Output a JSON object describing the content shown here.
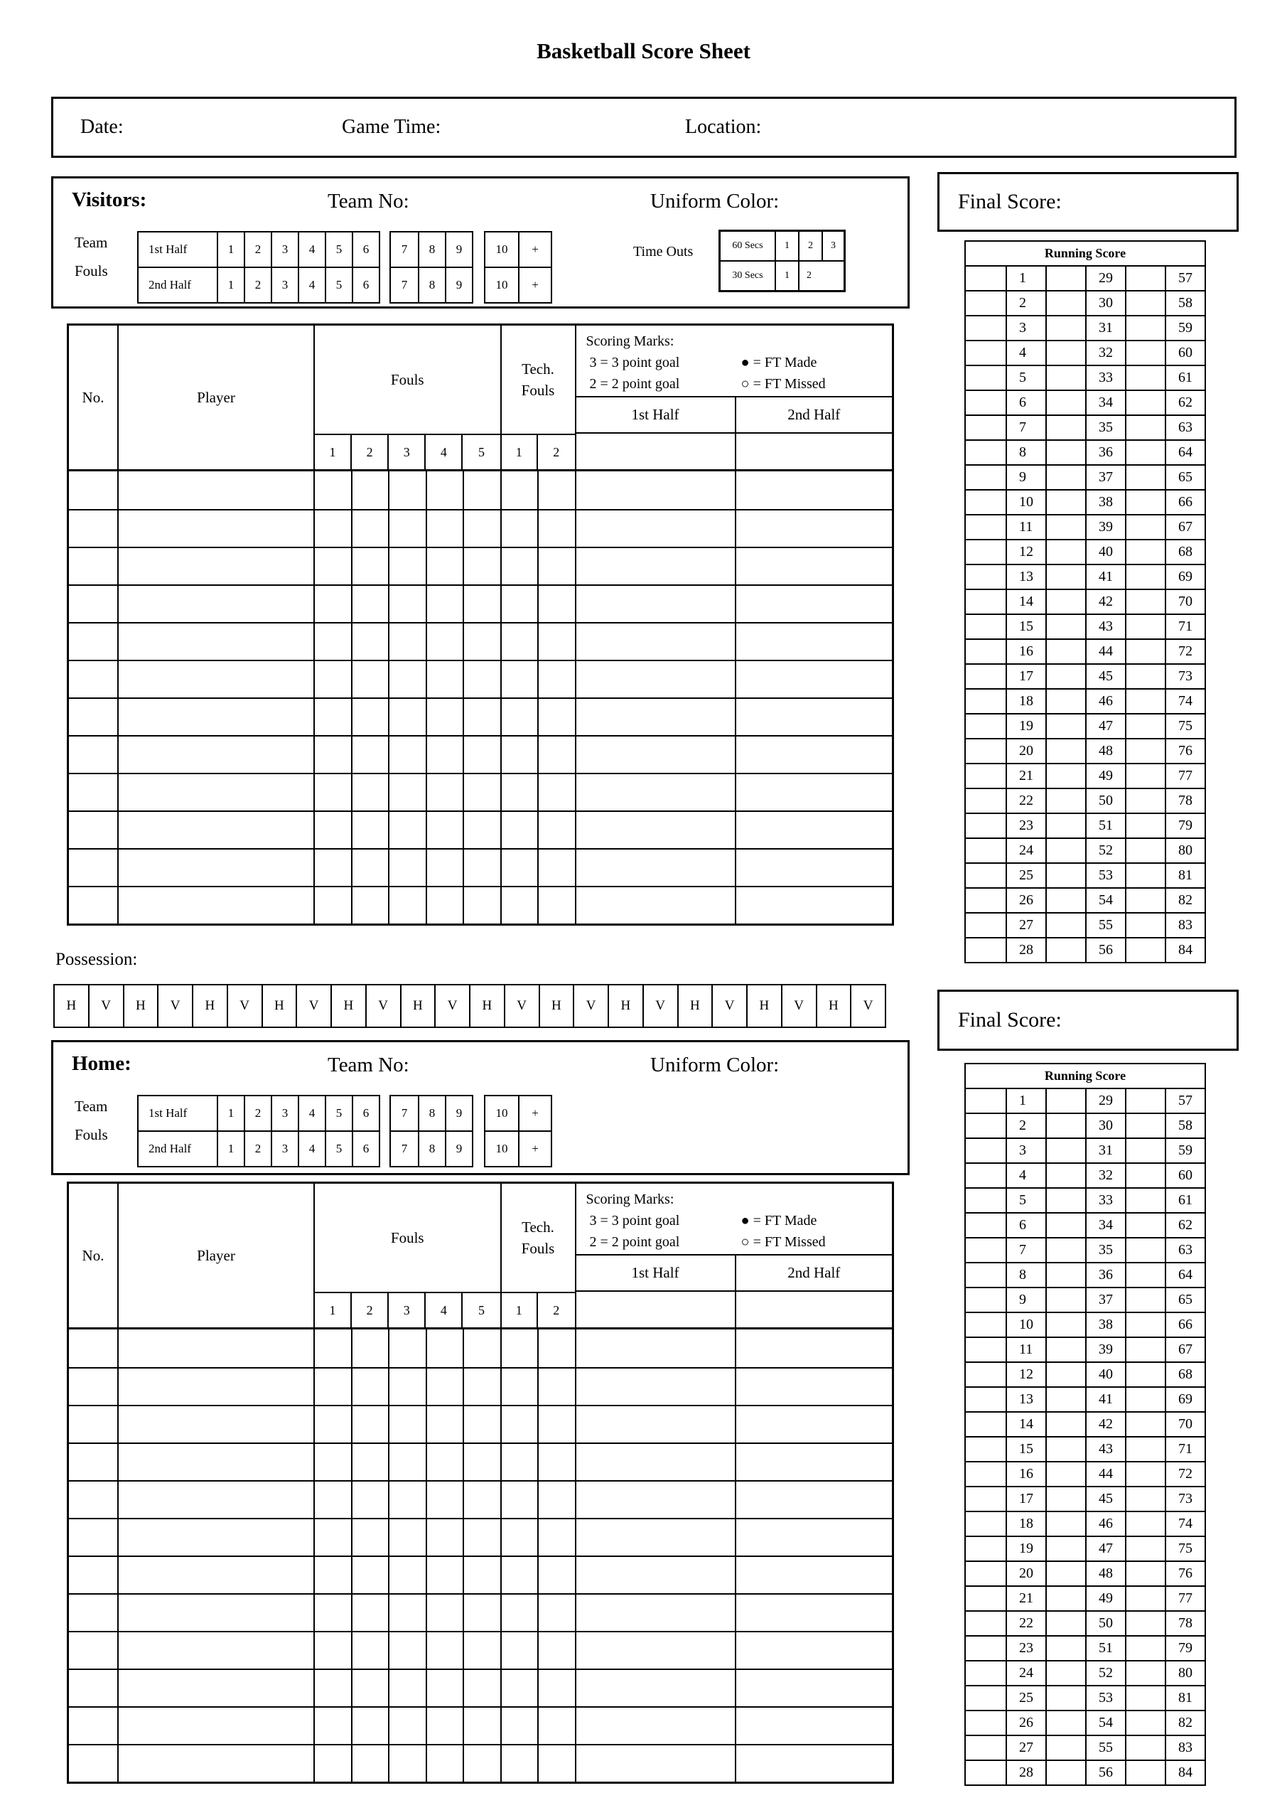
{
  "page": {
    "title": "Basketball Score Sheet"
  },
  "info_bar": {
    "date": "Date:",
    "game_time": "Game Time:",
    "location": "Location:"
  },
  "section_labels": {
    "team_no": "Team No:",
    "uniform_color": "Uniform Color:"
  },
  "sections": {
    "visitors": {
      "name": "Visitors:"
    },
    "home": {
      "name": "Home:"
    }
  },
  "team_fouls": {
    "label_line1": "Team",
    "label_line2": "Fouls",
    "row_labels": [
      "1st Half",
      "2nd Half"
    ],
    "cells_1_6": [
      "1",
      "2",
      "3",
      "4",
      "5",
      "6"
    ],
    "cells_7_9": [
      "7",
      "8",
      "9"
    ],
    "cells_10_plus": [
      "10",
      "+"
    ]
  },
  "time_outs": {
    "label": "Time Outs",
    "row1_label": "60 Secs",
    "row1_cells": [
      "1",
      "2",
      "3"
    ],
    "row2_label": "30 Secs",
    "row2_cells": [
      "1",
      "2"
    ]
  },
  "roster": {
    "no": "No.",
    "player": "Player",
    "fouls": "Fouls",
    "tech_line1": "Tech.",
    "tech_line2": "Fouls",
    "scoring_title": "Scoring Marks:",
    "scoring_rows": [
      {
        "left": "3 = 3 point goal",
        "right": "● = FT Made"
      },
      {
        "left": "2 = 2 point goal",
        "right": "○ = FT Missed"
      }
    ],
    "half1": "1st Half",
    "half2": "2nd Half",
    "foul_numbers": [
      "1",
      "2",
      "3",
      "4",
      "5"
    ],
    "tech_numbers": [
      "1",
      "2"
    ],
    "rows": [
      "",
      "",
      "",
      "",
      "",
      "",
      "",
      "",
      "",
      "",
      "",
      ""
    ]
  },
  "possession": {
    "label": "Possession:",
    "cells": [
      "H",
      "V",
      "H",
      "V",
      "H",
      "V",
      "H",
      "V",
      "H",
      "V",
      "H",
      "V",
      "H",
      "V",
      "H",
      "V",
      "H",
      "V",
      "H",
      "V",
      "H",
      "V",
      "H",
      "V"
    ]
  },
  "final_score": {
    "label": "Final Score:"
  },
  "running_score": {
    "title": "Running Score",
    "rows": [
      [
        "1",
        "29",
        "57"
      ],
      [
        "2",
        "30",
        "58"
      ],
      [
        "3",
        "31",
        "59"
      ],
      [
        "4",
        "32",
        "60"
      ],
      [
        "5",
        "33",
        "61"
      ],
      [
        "6",
        "34",
        "62"
      ],
      [
        "7",
        "35",
        "63"
      ],
      [
        "8",
        "36",
        "64"
      ],
      [
        "9",
        "37",
        "65"
      ],
      [
        "10",
        "38",
        "66"
      ],
      [
        "11",
        "39",
        "67"
      ],
      [
        "12",
        "40",
        "68"
      ],
      [
        "13",
        "41",
        "69"
      ],
      [
        "14",
        "42",
        "70"
      ],
      [
        "15",
        "43",
        "71"
      ],
      [
        "16",
        "44",
        "72"
      ],
      [
        "17",
        "45",
        "73"
      ],
      [
        "18",
        "46",
        "74"
      ],
      [
        "19",
        "47",
        "75"
      ],
      [
        "20",
        "48",
        "76"
      ],
      [
        "21",
        "49",
        "77"
      ],
      [
        "22",
        "50",
        "78"
      ],
      [
        "23",
        "51",
        "79"
      ],
      [
        "24",
        "52",
        "80"
      ],
      [
        "25",
        "53",
        "81"
      ],
      [
        "26",
        "54",
        "82"
      ],
      [
        "27",
        "55",
        "83"
      ],
      [
        "28",
        "56",
        "84"
      ]
    ]
  }
}
